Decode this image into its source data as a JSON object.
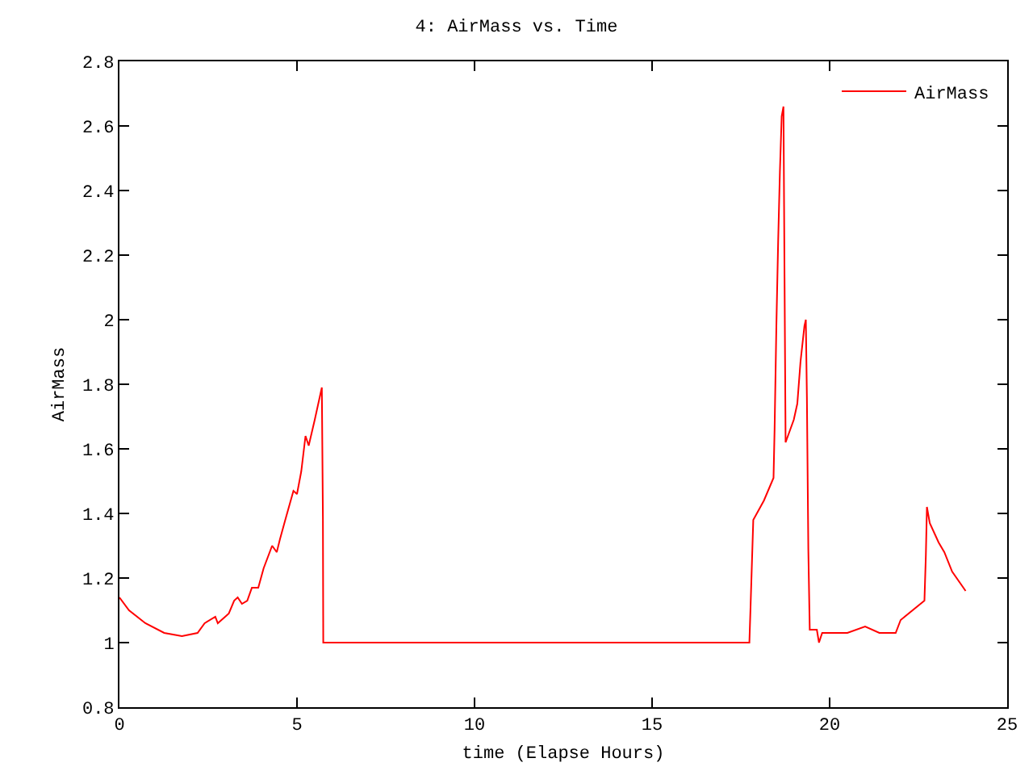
{
  "chart_data": {
    "type": "line",
    "title": "4: AirMass vs. Time",
    "xlabel": "time (Elapse Hours)",
    "ylabel": "AirMass",
    "xlim": [
      0,
      25
    ],
    "xticks": [
      0,
      5,
      10,
      15,
      20,
      25
    ],
    "ylim": [
      0.8,
      2.8
    ],
    "yticks": [
      0.8,
      1,
      1.2,
      1.4,
      1.6,
      1.8,
      2,
      2.2,
      2.4,
      2.6,
      2.8
    ],
    "grid": false,
    "legend": "top right",
    "marker": "none",
    "line_style": "solid",
    "series": [
      {
        "name": "AirMass",
        "color": "#ff0000",
        "x": [
          0,
          0.27,
          0.73,
          1.26,
          1.76,
          2.2,
          2.4,
          2.7,
          2.77,
          3.08,
          3.23,
          3.33,
          3.45,
          3.6,
          3.73,
          3.91,
          4.06,
          4.3,
          4.43,
          4.52,
          4.67,
          4.9,
          5.0,
          5.12,
          5.24,
          5.33,
          5.5,
          5.7,
          5.73,
          5.74,
          17.74,
          17.77,
          17.85,
          18.15,
          18.42,
          18.45,
          18.5,
          18.55,
          18.6,
          18.65,
          18.7,
          18.73,
          18.76,
          18.99,
          19.09,
          19.18,
          19.29,
          19.33,
          19.36,
          19.4,
          19.44,
          19.64,
          19.7,
          19.79,
          20.5,
          21.0,
          21.4,
          21.86,
          22.0,
          22.67,
          22.71,
          22.74,
          22.82,
          23.07,
          23.23,
          23.45,
          23.83
        ],
        "values": [
          1.14,
          1.1,
          1.06,
          1.03,
          1.02,
          1.03,
          1.06,
          1.08,
          1.06,
          1.09,
          1.13,
          1.14,
          1.12,
          1.13,
          1.17,
          1.17,
          1.23,
          1.3,
          1.28,
          1.32,
          1.38,
          1.47,
          1.46,
          1.53,
          1.64,
          1.61,
          1.69,
          1.79,
          1.39,
          1.0,
          1.0,
          1.1,
          1.38,
          1.44,
          1.51,
          1.66,
          1.98,
          2.24,
          2.46,
          2.63,
          2.66,
          2.13,
          1.62,
          1.69,
          1.74,
          1.87,
          1.98,
          2.0,
          1.76,
          1.29,
          1.04,
          1.04,
          1.0,
          1.03,
          1.03,
          1.05,
          1.03,
          1.03,
          1.07,
          1.13,
          1.27,
          1.42,
          1.37,
          1.31,
          1.28,
          1.22,
          1.16
        ]
      }
    ]
  }
}
